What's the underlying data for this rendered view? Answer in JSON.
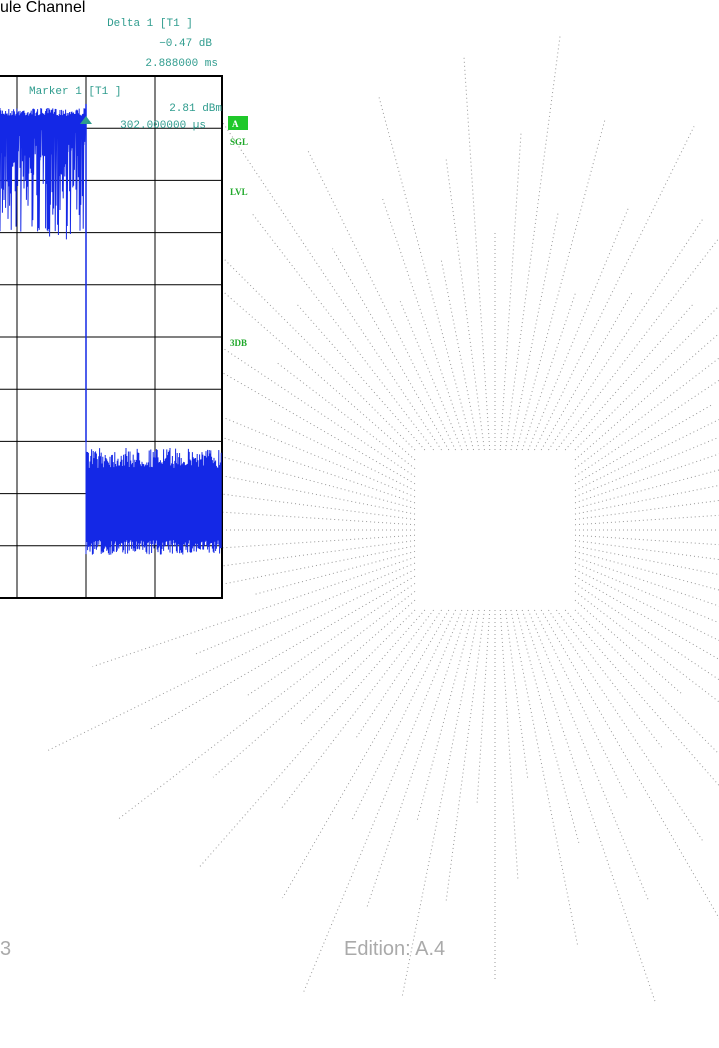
{
  "header": {
    "title": "ule Channel"
  },
  "screen": {
    "delta": {
      "label": "Delta 1 [T1 ]",
      "level": "−0.47 dB",
      "time": "2.888000 ms"
    },
    "marker": {
      "label": "Marker 1 [T1 ]",
      "level": "2.81 dBm",
      "time": "302.000000 µs"
    },
    "side_labels": {
      "mode": "A",
      "sweep": "SGL",
      "level": "LVL",
      "bandwidth": "3DB"
    }
  },
  "footer": {
    "page": "3",
    "edition": "Edition:  A.4"
  }
}
